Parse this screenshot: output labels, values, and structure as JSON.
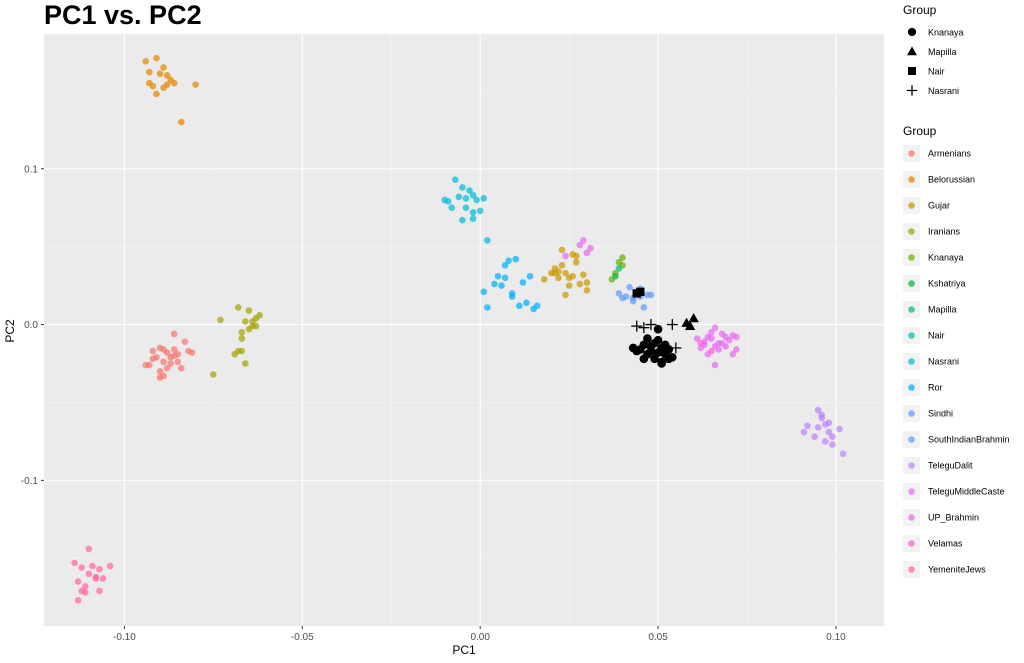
{
  "chart_data": {
    "type": "scatter",
    "title": "PC1 vs. PC2",
    "xlabel": "PC1",
    "ylabel": "PC2",
    "xlim": [
      -0.1226,
      0.1135
    ],
    "ylim": [
      -0.1935,
      0.1865
    ],
    "x_ticks": [
      -0.1,
      -0.05,
      0.0,
      0.05,
      0.1
    ],
    "x_tick_labels": [
      "-0.10",
      "-0.05",
      "0.00",
      "0.05",
      "0.10"
    ],
    "y_ticks": [
      -0.1,
      0.0,
      0.1
    ],
    "y_tick_labels": [
      "-0.1",
      "0.0",
      "0.1"
    ],
    "grid": true,
    "legend_position": "right",
    "shape_legend": {
      "title": "Group",
      "items": [
        {
          "label": "Knanaya",
          "shape": "circle"
        },
        {
          "label": "Mapilla",
          "shape": "triangle"
        },
        {
          "label": "Nair",
          "shape": "square"
        },
        {
          "label": "Nasrani",
          "shape": "plus"
        }
      ]
    },
    "series": [
      {
        "name": "Armenians",
        "color": "#F8766D",
        "points": [
          [
            -0.093,
            -0.026
          ],
          [
            -0.092,
            -0.017
          ],
          [
            -0.091,
            -0.021
          ],
          [
            -0.09,
            -0.03
          ],
          [
            -0.09,
            -0.015
          ],
          [
            -0.089,
            -0.024
          ],
          [
            -0.088,
            -0.018
          ],
          [
            -0.088,
            -0.028
          ],
          [
            -0.087,
            -0.021
          ],
          [
            -0.086,
            -0.006
          ],
          [
            -0.086,
            -0.016
          ],
          [
            -0.085,
            -0.024
          ],
          [
            -0.084,
            -0.028
          ],
          [
            -0.083,
            -0.011
          ],
          [
            -0.082,
            -0.017
          ],
          [
            -0.081,
            -0.018
          ],
          [
            -0.089,
            -0.033
          ],
          [
            -0.09,
            -0.034
          ],
          [
            -0.092,
            -0.022
          ],
          [
            -0.094,
            -0.026
          ],
          [
            -0.086,
            -0.02
          ],
          [
            -0.087,
            -0.025
          ],
          [
            -0.089,
            -0.016
          ],
          [
            -0.085,
            -0.019
          ]
        ]
      },
      {
        "name": "Belorussian",
        "color": "#E58700",
        "points": [
          [
            -0.094,
            0.169
          ],
          [
            -0.093,
            0.162
          ],
          [
            -0.091,
            0.171
          ],
          [
            -0.09,
            0.161
          ],
          [
            -0.089,
            0.165
          ],
          [
            -0.088,
            0.16
          ],
          [
            -0.087,
            0.157
          ],
          [
            -0.086,
            0.155
          ],
          [
            -0.089,
            0.152
          ],
          [
            -0.091,
            0.148
          ],
          [
            -0.093,
            0.155
          ],
          [
            -0.092,
            0.153
          ],
          [
            -0.084,
            0.13
          ],
          [
            -0.08,
            0.154
          ],
          [
            -0.088,
            0.154
          ]
        ]
      },
      {
        "name": "Gujar",
        "color": "#C99800",
        "points": [
          [
            0.018,
            0.029
          ],
          [
            0.02,
            0.033
          ],
          [
            0.021,
            0.036
          ],
          [
            0.022,
            0.03
          ],
          [
            0.023,
            0.038
          ],
          [
            0.024,
            0.033
          ],
          [
            0.025,
            0.025
          ],
          [
            0.026,
            0.031
          ],
          [
            0.027,
            0.04
          ],
          [
            0.028,
            0.026
          ],
          [
            0.029,
            0.032
          ],
          [
            0.03,
            0.027
          ],
          [
            0.023,
            0.048
          ],
          [
            0.026,
            0.045
          ],
          [
            0.022,
            0.034
          ],
          [
            0.024,
            0.019
          ],
          [
            0.027,
            0.044
          ],
          [
            0.03,
            0.022
          ],
          [
            0.025,
            0.03
          ],
          [
            0.021,
            0.033
          ]
        ]
      },
      {
        "name": "Iranians",
        "color": "#A3A500",
        "points": [
          [
            -0.075,
            -0.032
          ],
          [
            -0.073,
            0.003
          ],
          [
            -0.069,
            -0.019
          ],
          [
            -0.068,
            0.011
          ],
          [
            -0.067,
            -0.005
          ],
          [
            -0.066,
            0.002
          ],
          [
            -0.065,
            -0.003
          ],
          [
            -0.064,
            0.002
          ],
          [
            -0.063,
            0.004
          ],
          [
            -0.062,
            0.006
          ],
          [
            -0.066,
            -0.025
          ],
          [
            -0.067,
            -0.017
          ],
          [
            -0.065,
            0.009
          ],
          [
            -0.064,
            -0.001
          ],
          [
            -0.068,
            -0.017
          ],
          [
            -0.063,
            -0.001
          ],
          [
            -0.067,
            -0.009
          ]
        ]
      },
      {
        "name": "Knanaya",
        "color": "#6BB100",
        "points": [
          [
            0.037,
            0.029
          ],
          [
            0.038,
            0.033
          ],
          [
            0.039,
            0.04
          ],
          [
            0.04,
            0.043
          ],
          [
            0.04,
            0.038
          ]
        ]
      },
      {
        "name": "Kshatriya",
        "color": "#00BA38",
        "points": [
          [
            0.038,
            0.031
          ]
        ]
      },
      {
        "name": "Mapilla",
        "color": "#00BF7D",
        "points": [
          [
            0.039,
            0.036
          ]
        ]
      },
      {
        "name": "Nair",
        "color": "#00C0AF",
        "points": [
          [
            0.044,
            0.02
          ]
        ]
      },
      {
        "name": "Nasrani",
        "color": "#00BCD8",
        "points": [
          [
            -0.01,
            0.08
          ],
          [
            -0.009,
            0.079
          ],
          [
            -0.008,
            0.075
          ],
          [
            -0.007,
            0.093
          ],
          [
            -0.006,
            0.082
          ],
          [
            -0.005,
            0.088
          ],
          [
            -0.005,
            0.067
          ],
          [
            -0.004,
            0.075
          ],
          [
            -0.003,
            0.086
          ],
          [
            -0.002,
            0.068
          ],
          [
            -0.002,
            0.083
          ],
          [
            -0.001,
            0.08
          ],
          [
            0.0,
            0.073
          ],
          [
            0.001,
            0.081
          ],
          [
            0.002,
            0.054
          ],
          [
            -0.004,
            0.081
          ],
          [
            -0.002,
            0.072
          ]
        ]
      },
      {
        "name": "Ror",
        "color": "#00B0F6",
        "points": [
          [
            0.001,
            0.021
          ],
          [
            0.002,
            0.011
          ],
          [
            0.004,
            0.026
          ],
          [
            0.005,
            0.031
          ],
          [
            0.006,
            0.025
          ],
          [
            0.007,
            0.038
          ],
          [
            0.008,
            0.041
          ],
          [
            0.009,
            0.018
          ],
          [
            0.01,
            0.042
          ],
          [
            0.011,
            0.012
          ],
          [
            0.012,
            0.027
          ],
          [
            0.013,
            0.014
          ],
          [
            0.014,
            0.031
          ],
          [
            0.015,
            0.01
          ],
          [
            0.016,
            0.012
          ],
          [
            0.007,
            0.03
          ],
          [
            0.009,
            0.02
          ]
        ]
      },
      {
        "name": "Sindhi",
        "color": "#619CFF",
        "points": [
          [
            0.039,
            0.02
          ],
          [
            0.04,
            0.017
          ],
          [
            0.041,
            0.018
          ],
          [
            0.042,
            0.024
          ],
          [
            0.043,
            0.015
          ],
          [
            0.044,
            0.02
          ],
          [
            0.045,
            0.018
          ],
          [
            0.046,
            0.011
          ],
          [
            0.047,
            0.019
          ],
          [
            0.048,
            0.019
          ]
        ]
      },
      {
        "name": "SouthIndianBrahmin",
        "color": "#619CFF",
        "points": [
          [
            0.043,
            0.017
          ],
          [
            0.045,
            0.023
          ]
        ]
      },
      {
        "name": "TeleguDalit",
        "color": "#B983FF",
        "points": [
          [
            0.091,
            -0.069
          ],
          [
            0.092,
            -0.065
          ],
          [
            0.094,
            -0.072
          ],
          [
            0.095,
            -0.055
          ],
          [
            0.095,
            -0.066
          ],
          [
            0.096,
            -0.06
          ],
          [
            0.097,
            -0.075
          ],
          [
            0.097,
            -0.064
          ],
          [
            0.098,
            -0.063
          ],
          [
            0.098,
            -0.069
          ],
          [
            0.099,
            -0.077
          ],
          [
            0.099,
            -0.072
          ],
          [
            0.101,
            -0.067
          ],
          [
            0.102,
            -0.083
          ],
          [
            0.096,
            -0.058
          ]
        ]
      },
      {
        "name": "TeleguMiddleCaste",
        "color": "#E76BF3",
        "points": [
          [
            0.061,
            -0.009
          ],
          [
            0.062,
            -0.015
          ],
          [
            0.063,
            -0.011
          ],
          [
            0.064,
            -0.019
          ],
          [
            0.065,
            -0.005
          ],
          [
            0.065,
            -0.009
          ],
          [
            0.066,
            -0.002
          ],
          [
            0.066,
            -0.014
          ],
          [
            0.067,
            -0.012
          ],
          [
            0.067,
            -0.016
          ],
          [
            0.068,
            -0.006
          ],
          [
            0.068,
            -0.012
          ],
          [
            0.069,
            -0.008
          ],
          [
            0.07,
            -0.01
          ],
          [
            0.071,
            -0.007
          ],
          [
            0.072,
            -0.008
          ],
          [
            0.072,
            -0.016
          ],
          [
            0.071,
            -0.019
          ],
          [
            0.066,
            -0.026
          ],
          [
            0.063,
            -0.013
          ],
          [
            0.064,
            -0.008
          ],
          [
            0.069,
            -0.014
          ]
        ]
      },
      {
        "name": "UP_Brahmin",
        "color": "#E76BF3",
        "points": [
          [
            0.024,
            0.044
          ],
          [
            0.028,
            0.051
          ],
          [
            0.03,
            0.046
          ],
          [
            0.029,
            0.054
          ],
          [
            0.031,
            0.049
          ]
        ]
      },
      {
        "name": "Velamas",
        "color": "#FD61D1",
        "points": [
          [
            0.062,
            -0.012
          ],
          [
            0.065,
            -0.017
          ]
        ]
      },
      {
        "name": "YemeniteJews",
        "color": "#FF67A4",
        "points": [
          [
            -0.114,
            -0.153
          ],
          [
            -0.113,
            -0.165
          ],
          [
            -0.112,
            -0.171
          ],
          [
            -0.112,
            -0.156
          ],
          [
            -0.111,
            -0.168
          ],
          [
            -0.11,
            -0.16
          ],
          [
            -0.11,
            -0.144
          ],
          [
            -0.109,
            -0.155
          ],
          [
            -0.108,
            -0.162
          ],
          [
            -0.107,
            -0.171
          ],
          [
            -0.107,
            -0.157
          ],
          [
            -0.106,
            -0.163
          ],
          [
            -0.104,
            -0.155
          ],
          [
            -0.113,
            -0.177
          ],
          [
            -0.111,
            -0.172
          ],
          [
            -0.108,
            -0.163
          ]
        ]
      }
    ],
    "shape_points": {
      "Knanaya": [
        [
          0.043,
          -0.015
        ],
        [
          0.044,
          -0.017
        ],
        [
          0.045,
          -0.016
        ],
        [
          0.046,
          -0.013
        ],
        [
          0.047,
          -0.009
        ],
        [
          0.047,
          -0.019
        ],
        [
          0.048,
          -0.014
        ],
        [
          0.049,
          -0.022
        ],
        [
          0.049,
          -0.012
        ],
        [
          0.05,
          -0.003
        ],
        [
          0.05,
          -0.018
        ],
        [
          0.051,
          -0.015
        ],
        [
          0.051,
          -0.025
        ],
        [
          0.052,
          -0.019
        ],
        [
          0.052,
          -0.013
        ],
        [
          0.053,
          -0.022
        ],
        [
          0.05,
          -0.01
        ],
        [
          0.048,
          -0.017
        ],
        [
          0.046,
          -0.022
        ],
        [
          0.053,
          -0.016
        ],
        [
          0.054,
          -0.021
        ],
        [
          0.051,
          -0.024
        ]
      ],
      "Mapilla": [
        [
          0.059,
          -0.001
        ],
        [
          0.06,
          0.004
        ],
        [
          0.058,
          0.001
        ]
      ],
      "Nair": [
        [
          0.045,
          0.021
        ],
        [
          0.044,
          0.02
        ]
      ],
      "Nasrani": [
        [
          0.044,
          -0.001
        ],
        [
          0.048,
          0.0
        ],
        [
          0.054,
          0.0
        ],
        [
          0.055,
          -0.015
        ],
        [
          0.046,
          -0.002
        ]
      ]
    }
  }
}
